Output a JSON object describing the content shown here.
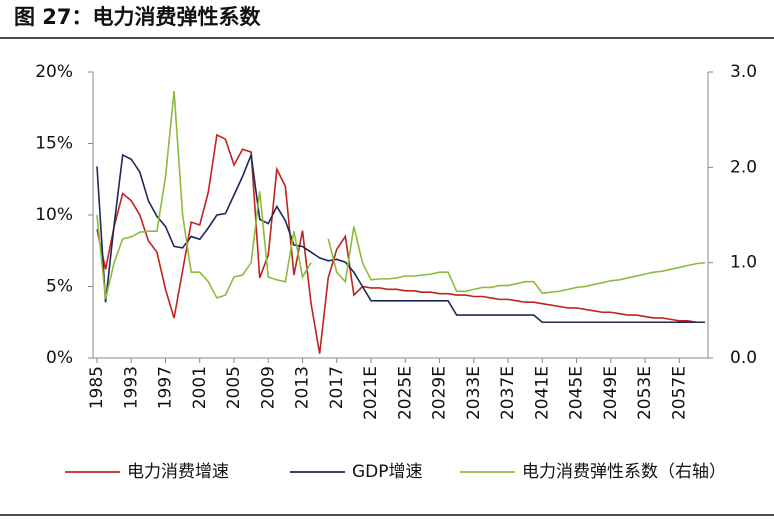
{
  "chart_data": {
    "type": "line",
    "title": "图 27：电力消费弹性系数",
    "categories": [
      "1985",
      null,
      null,
      null,
      "1993",
      null,
      null,
      null,
      "1997",
      null,
      null,
      null,
      "2001",
      null,
      null,
      null,
      "2005",
      null,
      null,
      null,
      "2009",
      null,
      null,
      null,
      "2013",
      null,
      null,
      null,
      "2017",
      null,
      null,
      null,
      "2021E",
      null,
      null,
      null,
      "2025E",
      null,
      null,
      null,
      "2029E",
      null,
      null,
      null,
      "2033E",
      null,
      null,
      null,
      "2037E",
      null,
      null,
      null,
      "2041E",
      null,
      null,
      null,
      "2045E",
      null,
      null,
      null,
      "2049E",
      null,
      null,
      null,
      "2053E",
      null,
      null,
      null,
      "2057E",
      null,
      null,
      null
    ],
    "series": [
      {
        "name": "电力消费增速",
        "color": "#c0231f",
        "axis": "y",
        "values": [
          9.0,
          6.2,
          9.2,
          11.5,
          11.0,
          10.0,
          8.2,
          7.4,
          4.8,
          2.8,
          6.1,
          9.5,
          9.3,
          11.6,
          15.6,
          15.3,
          13.5,
          14.6,
          14.4,
          5.6,
          7.2,
          13.2,
          12.0,
          5.8,
          8.9,
          3.8,
          0.3,
          5.6,
          7.6,
          8.5,
          4.4,
          5.0,
          4.9,
          4.9,
          4.8,
          4.8,
          4.7,
          4.7,
          4.6,
          4.6,
          4.5,
          4.5,
          4.4,
          4.4,
          4.3,
          4.3,
          4.2,
          4.1,
          4.1,
          4.0,
          3.9,
          3.9,
          3.8,
          3.7,
          3.6,
          3.5,
          3.5,
          3.4,
          3.3,
          3.2,
          3.2,
          3.1,
          3.0,
          3.0,
          2.9,
          2.8,
          2.8,
          2.7,
          2.6,
          2.6,
          2.5,
          2.5
        ]
      },
      {
        "name": "GDP增速",
        "color": "#1f2857",
        "axis": "y",
        "values": [
          13.4,
          3.9,
          9.3,
          14.2,
          13.9,
          13.0,
          11.0,
          9.9,
          9.2,
          7.8,
          7.7,
          8.5,
          8.3,
          9.1,
          10.0,
          10.1,
          11.4,
          12.7,
          14.2,
          9.7,
          9.4,
          10.6,
          9.6,
          7.9,
          7.8,
          7.4,
          7.0,
          6.8,
          6.9,
          6.7,
          6.0,
          5.0,
          4.0,
          4.0,
          4.0,
          4.0,
          4.0,
          4.0,
          4.0,
          4.0,
          4.0,
          4.0,
          3.0,
          3.0,
          3.0,
          3.0,
          3.0,
          3.0,
          3.0,
          3.0,
          3.0,
          3.0,
          2.5,
          2.5,
          2.5,
          2.5,
          2.5,
          2.5,
          2.5,
          2.5,
          2.5,
          2.5,
          2.5,
          2.5,
          2.5,
          2.5,
          2.5,
          2.5,
          2.5,
          2.5,
          2.5,
          2.5
        ]
      },
      {
        "name": "电力消费弹性系数（右轴）",
        "color": "#8dbb3c",
        "axis": "y2",
        "values": [
          1.5,
          0.62,
          1.0,
          1.25,
          1.27,
          1.32,
          1.33,
          1.33,
          1.9,
          2.8,
          1.5,
          0.9,
          0.9,
          0.8,
          0.63,
          0.66,
          0.85,
          0.87,
          1.0,
          1.75,
          0.85,
          0.82,
          0.8,
          1.33,
          0.85,
          1.0,
          null,
          1.25,
          0.9,
          0.8,
          1.38,
          1.0,
          0.82,
          0.83,
          0.83,
          0.84,
          0.86,
          0.86,
          0.87,
          0.88,
          0.9,
          0.9,
          0.7,
          0.7,
          0.72,
          0.74,
          0.74,
          0.76,
          0.76,
          0.78,
          0.8,
          0.8,
          0.68,
          0.69,
          0.7,
          0.72,
          0.74,
          0.75,
          0.77,
          0.79,
          0.81,
          0.82,
          0.84,
          0.86,
          0.88,
          0.9,
          0.91,
          0.93,
          0.95,
          0.97,
          0.99,
          1.0
        ]
      }
    ],
    "ylim": [
      0,
      20
    ],
    "yticks": [
      {
        "value": 0,
        "label": "0%"
      },
      {
        "value": 5,
        "label": "5%"
      },
      {
        "value": 10,
        "label": "10%"
      },
      {
        "value": 15,
        "label": "15%"
      },
      {
        "value": 20,
        "label": "20%"
      }
    ],
    "y2lim": [
      0,
      3
    ],
    "y2ticks": [
      {
        "value": 0,
        "label": "0.0"
      },
      {
        "value": 1,
        "label": "1.0"
      },
      {
        "value": 2,
        "label": "2.0"
      },
      {
        "value": 3,
        "label": "3.0"
      }
    ],
    "legend": "bottom"
  }
}
